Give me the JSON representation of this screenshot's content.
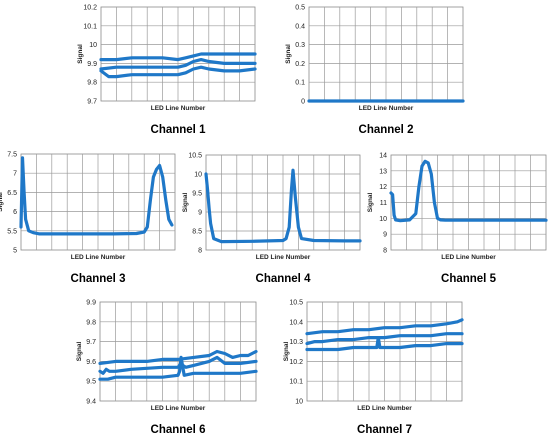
{
  "chart_data": [
    {
      "type": "line",
      "title": "Channel 1",
      "xlabel": "LED Line Number",
      "ylabel": "Signal",
      "ylim": [
        9.7,
        10.2
      ],
      "yticks": [
        "9.7",
        "9.8",
        "9.9",
        "10",
        "10.1",
        "10.2"
      ],
      "grid": true,
      "series": [
        {
          "x": [
            0,
            0.1,
            0.2,
            0.3,
            0.4,
            0.5,
            0.55,
            0.6,
            0.65,
            0.7,
            0.8,
            0.9,
            1.0
          ],
          "values": [
            9.92,
            9.92,
            9.93,
            9.93,
            9.93,
            9.92,
            9.93,
            9.94,
            9.95,
            9.95,
            9.95,
            9.95,
            9.95
          ]
        },
        {
          "x": [
            0,
            0.1,
            0.2,
            0.3,
            0.4,
            0.5,
            0.55,
            0.6,
            0.65,
            0.7,
            0.8,
            0.9,
            1.0
          ],
          "values": [
            9.87,
            9.88,
            9.88,
            9.88,
            9.88,
            9.88,
            9.89,
            9.91,
            9.92,
            9.91,
            9.9,
            9.9,
            9.9
          ]
        },
        {
          "x": [
            0,
            0.05,
            0.1,
            0.2,
            0.3,
            0.4,
            0.5,
            0.55,
            0.6,
            0.65,
            0.7,
            0.8,
            0.9,
            1.0
          ],
          "values": [
            9.86,
            9.83,
            9.83,
            9.84,
            9.84,
            9.84,
            9.84,
            9.85,
            9.87,
            9.88,
            9.87,
            9.86,
            9.86,
            9.87
          ]
        }
      ]
    },
    {
      "type": "line",
      "title": "Channel 2",
      "xlabel": "LED Line Number",
      "ylabel": "Signal",
      "ylim": [
        0,
        0.5
      ],
      "yticks": [
        "0",
        "0.1",
        "0.2",
        "0.3",
        "0.4",
        "0.5"
      ],
      "grid": true,
      "series": [
        {
          "x": [
            0,
            1
          ],
          "values": [
            0,
            0
          ]
        }
      ]
    },
    {
      "type": "line",
      "title": "Channel 3",
      "xlabel": "LED Line Number",
      "ylabel": "Signal",
      "ylim": [
        5,
        7.5
      ],
      "yticks": [
        "5",
        "5.5",
        "6",
        "6.5",
        "7",
        "7.5"
      ],
      "grid": true,
      "series": [
        {
          "x": [
            0,
            0.01,
            0.02,
            0.03,
            0.05,
            0.08,
            0.12,
            0.3,
            0.6,
            0.75,
            0.8,
            0.82,
            0.84,
            0.86,
            0.88,
            0.9,
            0.92,
            0.94,
            0.96,
            0.98
          ],
          "values": [
            5.6,
            7.4,
            6.5,
            5.8,
            5.5,
            5.45,
            5.42,
            5.42,
            5.42,
            5.43,
            5.47,
            5.6,
            6.3,
            6.9,
            7.1,
            7.2,
            6.9,
            6.3,
            5.8,
            5.65
          ]
        }
      ]
    },
    {
      "type": "line",
      "title": "Channel 4",
      "xlabel": "LED Line Number",
      "ylabel": "Signal",
      "ylim": [
        8,
        10.5
      ],
      "yticks": [
        "8",
        "8.5",
        "9",
        "9.5",
        "10",
        "10.5"
      ],
      "grid": true,
      "series": [
        {
          "x": [
            0,
            0.01,
            0.02,
            0.03,
            0.05,
            0.1,
            0.3,
            0.5,
            0.52,
            0.54,
            0.555,
            0.565,
            0.58,
            0.6,
            0.62,
            0.7,
            0.9,
            1.0
          ],
          "values": [
            10.0,
            9.6,
            9.1,
            8.7,
            8.3,
            8.22,
            8.23,
            8.25,
            8.3,
            8.6,
            9.6,
            10.1,
            9.4,
            8.6,
            8.3,
            8.25,
            8.24,
            8.24
          ]
        }
      ]
    },
    {
      "type": "line",
      "title": "Channel 5",
      "xlabel": "LED Line Number",
      "ylabel": "Signal",
      "ylim": [
        8,
        14
      ],
      "yticks": [
        "8",
        "9",
        "10",
        "11",
        "12",
        "13",
        "14"
      ],
      "grid": true,
      "series": [
        {
          "x": [
            0,
            0.01,
            0.02,
            0.03,
            0.06,
            0.12,
            0.16,
            0.18,
            0.2,
            0.22,
            0.24,
            0.26,
            0.28,
            0.3,
            0.32,
            0.35,
            0.5,
            0.7,
            1.0
          ],
          "values": [
            11.6,
            11.5,
            10.2,
            9.9,
            9.85,
            9.9,
            10.3,
            12.0,
            13.3,
            13.6,
            13.5,
            12.8,
            11.0,
            10.0,
            9.9,
            9.88,
            9.88,
            9.88,
            9.88
          ]
        }
      ]
    },
    {
      "type": "line",
      "title": "Channel 6",
      "xlabel": "LED Line Number",
      "ylabel": "Signal",
      "ylim": [
        9.4,
        9.9
      ],
      "yticks": [
        "9.4",
        "9.5",
        "9.6",
        "9.7",
        "9.8",
        "9.9"
      ],
      "grid": true,
      "series": [
        {
          "x": [
            0,
            0.1,
            0.2,
            0.3,
            0.4,
            0.5,
            0.6,
            0.7,
            0.75,
            0.8,
            0.85,
            0.9,
            0.95,
            1.0
          ],
          "values": [
            9.59,
            9.6,
            9.6,
            9.6,
            9.61,
            9.61,
            9.62,
            9.63,
            9.65,
            9.64,
            9.62,
            9.63,
            9.63,
            9.65
          ]
        },
        {
          "x": [
            0,
            0.02,
            0.04,
            0.06,
            0.1,
            0.2,
            0.4,
            0.5,
            0.52,
            0.53,
            0.55,
            0.6,
            0.7,
            0.75,
            0.8,
            0.9,
            1.0
          ],
          "values": [
            9.55,
            9.54,
            9.56,
            9.55,
            9.55,
            9.56,
            9.57,
            9.57,
            9.59,
            9.58,
            9.57,
            9.58,
            9.6,
            9.62,
            9.59,
            9.59,
            9.6
          ]
        },
        {
          "x": [
            0,
            0.05,
            0.1,
            0.2,
            0.3,
            0.4,
            0.5,
            0.51,
            0.52,
            0.54,
            0.6,
            0.7,
            0.8,
            0.9,
            1.0
          ],
          "values": [
            9.51,
            9.51,
            9.52,
            9.52,
            9.52,
            9.52,
            9.53,
            9.55,
            9.62,
            9.53,
            9.54,
            9.54,
            9.54,
            9.54,
            9.55
          ]
        }
      ]
    },
    {
      "type": "line",
      "title": "Channel 7",
      "xlabel": "LED Line Number",
      "ylabel": "Signal",
      "ylim": [
        10,
        10.5
      ],
      "yticks": [
        "10",
        "10.1",
        "10.2",
        "10.3",
        "10.4",
        "10.5"
      ],
      "grid": true,
      "series": [
        {
          "x": [
            0,
            0.1,
            0.2,
            0.3,
            0.4,
            0.5,
            0.6,
            0.7,
            0.8,
            0.9,
            0.97,
            1.0
          ],
          "values": [
            10.34,
            10.35,
            10.35,
            10.36,
            10.36,
            10.37,
            10.37,
            10.38,
            10.38,
            10.39,
            10.4,
            10.41
          ]
        },
        {
          "x": [
            0,
            0.05,
            0.1,
            0.2,
            0.3,
            0.4,
            0.5,
            0.6,
            0.7,
            0.8,
            0.9,
            1.0
          ],
          "values": [
            10.29,
            10.3,
            10.3,
            10.31,
            10.31,
            10.32,
            10.32,
            10.33,
            10.33,
            10.33,
            10.34,
            10.34
          ]
        },
        {
          "x": [
            0,
            0.1,
            0.2,
            0.3,
            0.4,
            0.45,
            0.46,
            0.47,
            0.5,
            0.6,
            0.7,
            0.8,
            0.9,
            1.0
          ],
          "values": [
            10.26,
            10.26,
            10.26,
            10.27,
            10.27,
            10.27,
            10.32,
            10.27,
            10.27,
            10.27,
            10.28,
            10.28,
            10.29,
            10.29
          ]
        }
      ]
    }
  ]
}
